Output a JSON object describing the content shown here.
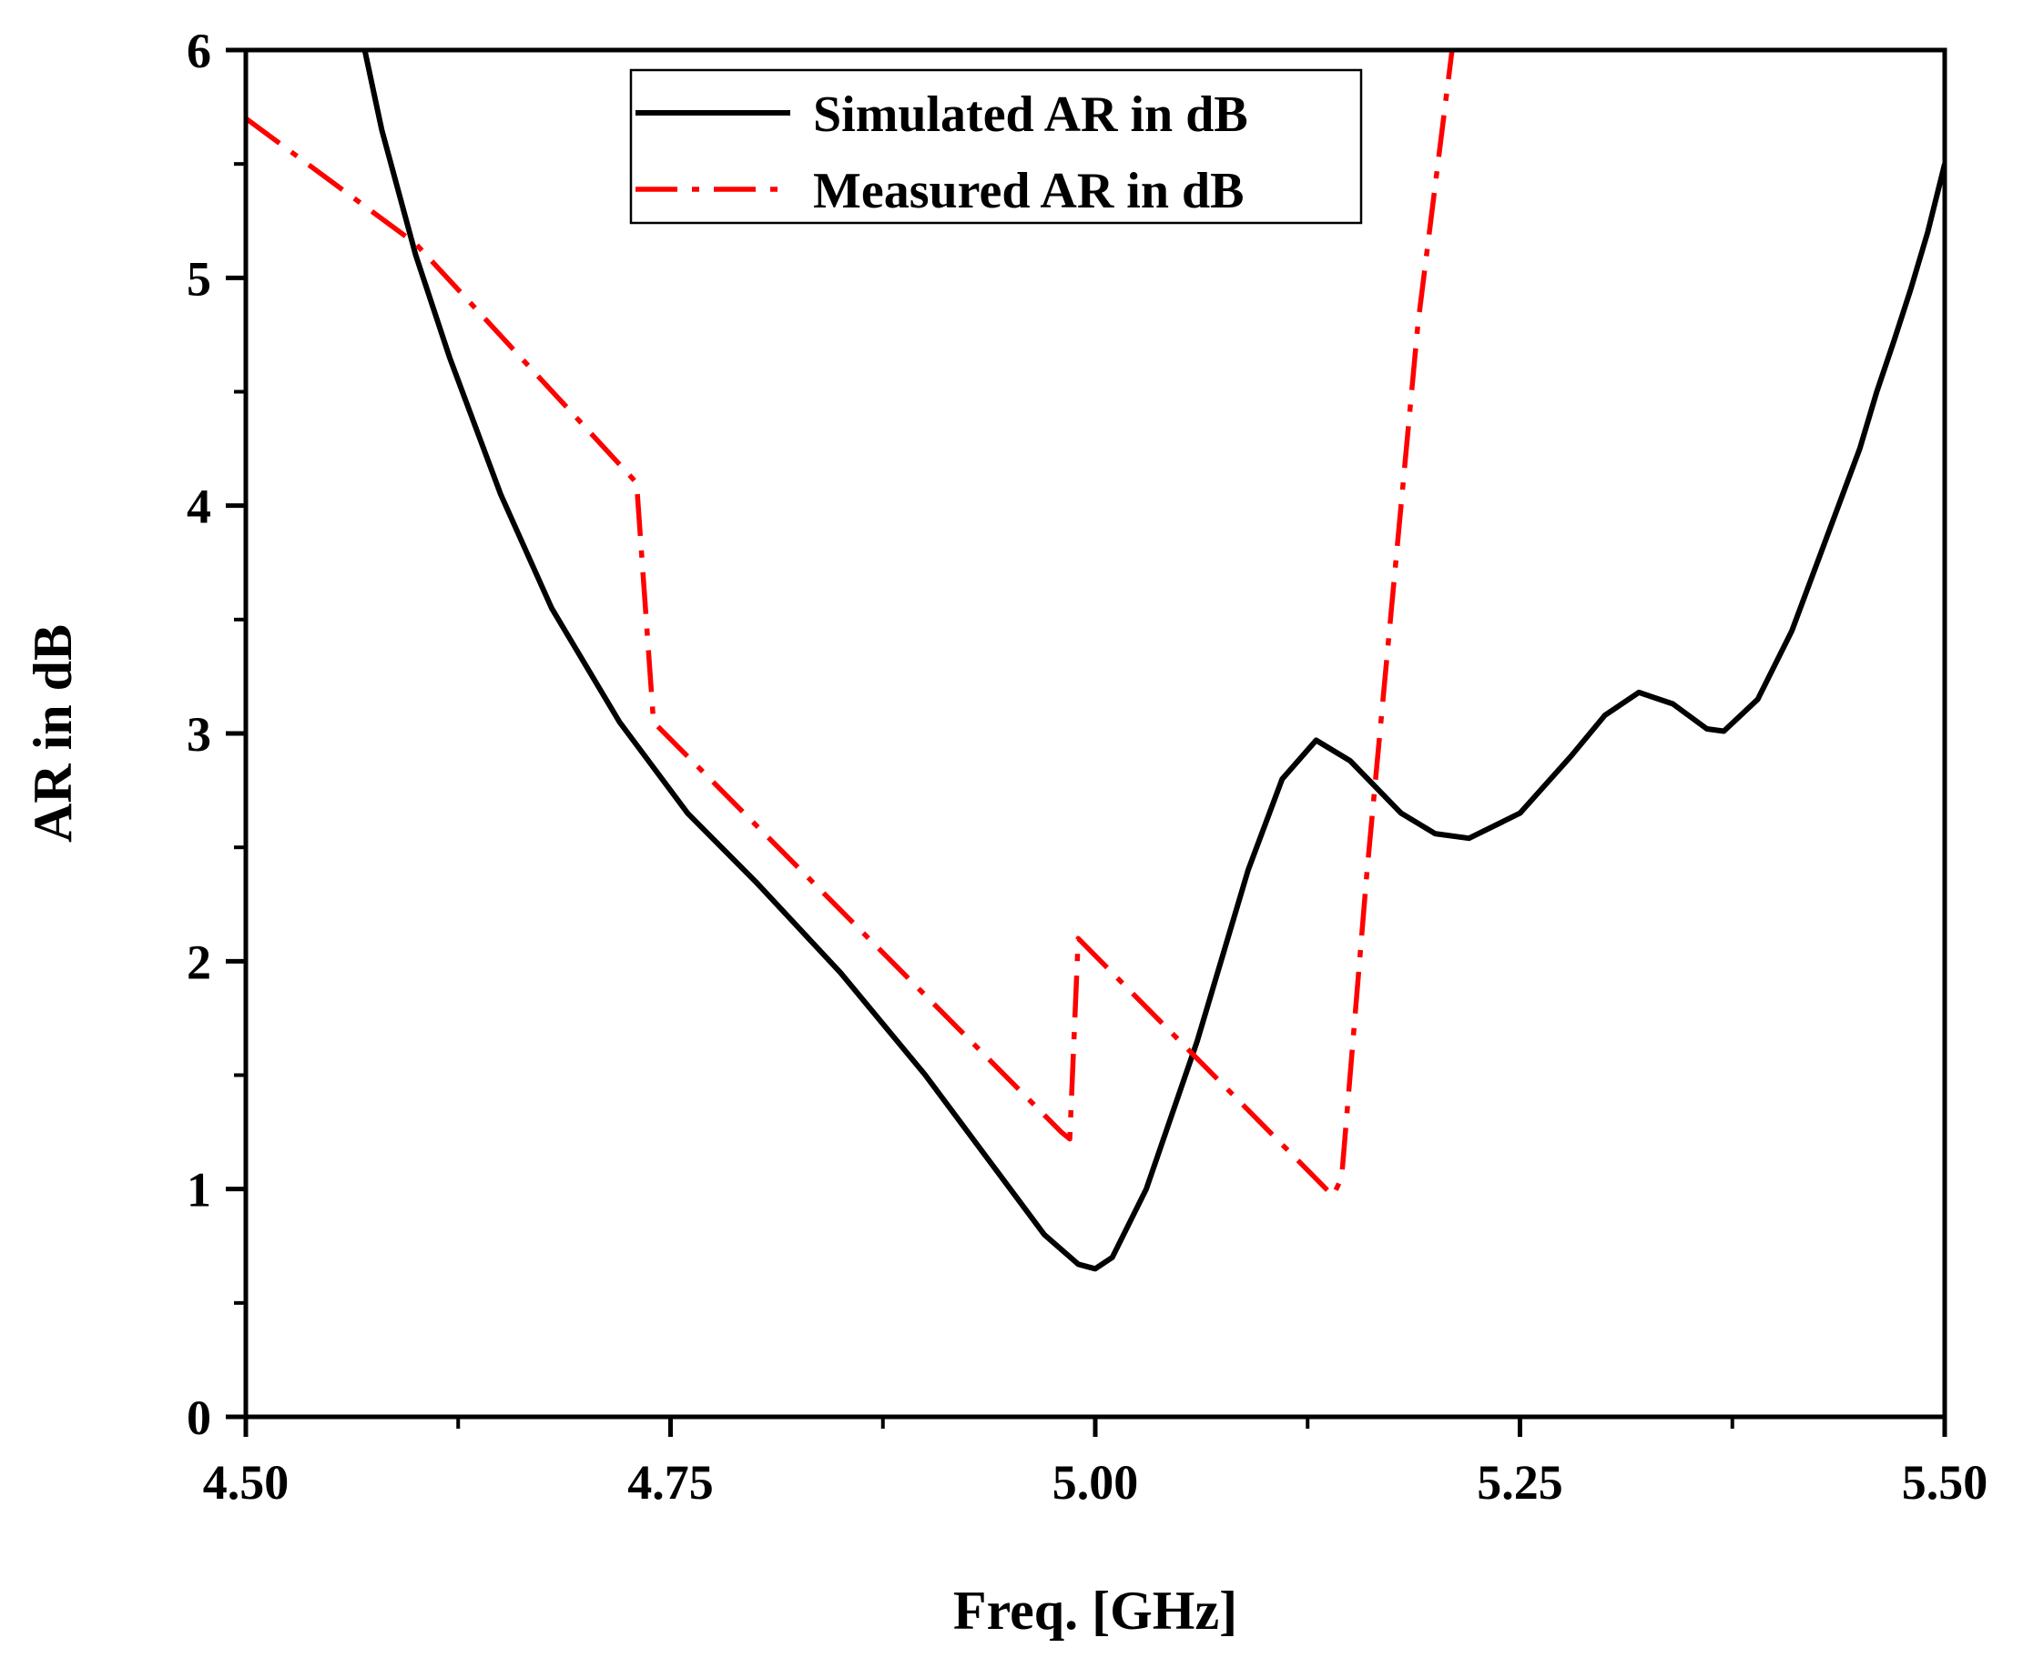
{
  "chart_data": {
    "type": "line",
    "title": "",
    "xlabel": "Freq. [GHz]",
    "ylabel": "AR in dB",
    "xlim": [
      4.5,
      5.5
    ],
    "ylim": [
      0,
      6
    ],
    "grid": false,
    "legend_position": "top-center",
    "x_ticks": [
      {
        "value": 4.5,
        "label": "4.50"
      },
      {
        "value": 4.75,
        "label": "4.75"
      },
      {
        "value": 5.0,
        "label": "5.00"
      },
      {
        "value": 5.25,
        "label": "5.25"
      },
      {
        "value": 5.5,
        "label": "5.50"
      }
    ],
    "x_minor_ticks": [
      4.625,
      4.875,
      5.125,
      5.375
    ],
    "y_ticks": [
      {
        "value": 0,
        "label": "0"
      },
      {
        "value": 1,
        "label": "1"
      },
      {
        "value": 2,
        "label": "2"
      },
      {
        "value": 3,
        "label": "3"
      },
      {
        "value": 4,
        "label": "4"
      },
      {
        "value": 5,
        "label": "5"
      },
      {
        "value": 6,
        "label": "6"
      }
    ],
    "y_minor_ticks": [
      0.5,
      1.5,
      2.5,
      3.5,
      4.5,
      5.5
    ],
    "series": [
      {
        "name": "Simulated AR in dB",
        "color": "#000000",
        "dash": "solid",
        "x": [
          4.57,
          4.58,
          4.6,
          4.62,
          4.65,
          4.68,
          4.72,
          4.76,
          4.8,
          4.85,
          4.9,
          4.94,
          4.97,
          4.99,
          5.0,
          5.01,
          5.03,
          5.06,
          5.09,
          5.11,
          5.13,
          5.15,
          5.18,
          5.2,
          5.22,
          5.25,
          5.28,
          5.3,
          5.32,
          5.34,
          5.36,
          5.37,
          5.39,
          5.41,
          5.43,
          5.45,
          5.46,
          5.47,
          5.48,
          5.49,
          5.5
        ],
        "values": [
          6.0,
          5.65,
          5.1,
          4.65,
          4.05,
          3.55,
          3.05,
          2.65,
          2.35,
          1.95,
          1.5,
          1.1,
          0.8,
          0.67,
          0.65,
          0.7,
          1.0,
          1.65,
          2.4,
          2.8,
          2.97,
          2.88,
          2.65,
          2.56,
          2.54,
          2.65,
          2.9,
          3.08,
          3.18,
          3.13,
          3.02,
          3.01,
          3.15,
          3.45,
          3.85,
          4.25,
          4.5,
          4.72,
          4.95,
          5.2,
          5.5
        ]
      },
      {
        "name": "Measured AR in dB",
        "color": "#ff0000",
        "dash": "dash-dot",
        "x": [
          4.5,
          4.6,
          4.73,
          4.74,
          4.98,
          4.985,
          4.99,
          5.14,
          5.145,
          5.16,
          5.19,
          5.21
        ],
        "values": [
          5.7,
          5.15,
          4.1,
          3.05,
          1.25,
          1.22,
          2.1,
          0.97,
          1.05,
          2.4,
          4.8,
          6.0
        ]
      }
    ]
  }
}
